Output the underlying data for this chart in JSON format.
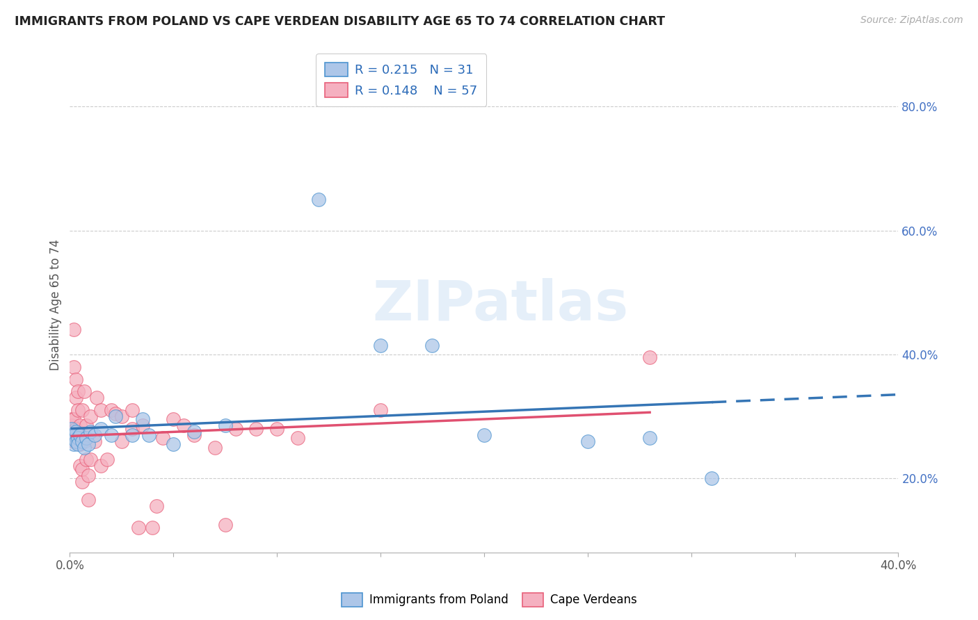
{
  "title": "IMMIGRANTS FROM POLAND VS CAPE VERDEAN DISABILITY AGE 65 TO 74 CORRELATION CHART",
  "source": "Source: ZipAtlas.com",
  "ylabel": "Disability Age 65 to 74",
  "right_yticks": [
    "20.0%",
    "40.0%",
    "60.0%",
    "80.0%"
  ],
  "right_ytick_vals": [
    0.2,
    0.4,
    0.6,
    0.8
  ],
  "R_poland": 0.215,
  "N_poland": 31,
  "R_cape": 0.148,
  "N_cape": 57,
  "color_poland_fill": "#adc6e8",
  "color_poland_edge": "#4d94d0",
  "color_cape_fill": "#f5b0c0",
  "color_cape_edge": "#e8607a",
  "color_trend_poland": "#3575b5",
  "color_trend_cape": "#e05070",
  "color_legend_text": "#2a6ab8",
  "watermark_text": "ZIPatlas",
  "xlim": [
    0.0,
    0.4
  ],
  "ylim": [
    0.08,
    0.88
  ],
  "poland_x": [
    0.001,
    0.001,
    0.002,
    0.002,
    0.003,
    0.003,
    0.004,
    0.004,
    0.005,
    0.006,
    0.007,
    0.008,
    0.009,
    0.01,
    0.012,
    0.015,
    0.02,
    0.022,
    0.03,
    0.035,
    0.038,
    0.05,
    0.06,
    0.075,
    0.12,
    0.15,
    0.175,
    0.2,
    0.25,
    0.28,
    0.31
  ],
  "poland_y": [
    0.265,
    0.28,
    0.255,
    0.27,
    0.26,
    0.275,
    0.265,
    0.255,
    0.27,
    0.26,
    0.25,
    0.265,
    0.255,
    0.275,
    0.27,
    0.28,
    0.27,
    0.3,
    0.27,
    0.295,
    0.27,
    0.255,
    0.275,
    0.285,
    0.65,
    0.415,
    0.415,
    0.27,
    0.26,
    0.265,
    0.2
  ],
  "cape_x": [
    0.001,
    0.001,
    0.001,
    0.001,
    0.001,
    0.002,
    0.002,
    0.002,
    0.002,
    0.003,
    0.003,
    0.003,
    0.003,
    0.004,
    0.004,
    0.004,
    0.005,
    0.005,
    0.005,
    0.006,
    0.006,
    0.006,
    0.007,
    0.007,
    0.008,
    0.008,
    0.009,
    0.009,
    0.01,
    0.01,
    0.012,
    0.013,
    0.015,
    0.015,
    0.018,
    0.02,
    0.022,
    0.025,
    0.025,
    0.03,
    0.03,
    0.033,
    0.035,
    0.04,
    0.042,
    0.045,
    0.05,
    0.055,
    0.06,
    0.07,
    0.075,
    0.08,
    0.09,
    0.1,
    0.11,
    0.15,
    0.28
  ],
  "cape_y": [
    0.275,
    0.285,
    0.265,
    0.295,
    0.27,
    0.44,
    0.38,
    0.295,
    0.26,
    0.36,
    0.33,
    0.28,
    0.265,
    0.34,
    0.31,
    0.27,
    0.285,
    0.255,
    0.22,
    0.195,
    0.215,
    0.31,
    0.34,
    0.26,
    0.285,
    0.23,
    0.205,
    0.165,
    0.3,
    0.23,
    0.26,
    0.33,
    0.31,
    0.22,
    0.23,
    0.31,
    0.305,
    0.3,
    0.26,
    0.31,
    0.28,
    0.12,
    0.285,
    0.12,
    0.155,
    0.265,
    0.295,
    0.285,
    0.27,
    0.25,
    0.125,
    0.28,
    0.28,
    0.28,
    0.265,
    0.31,
    0.395
  ]
}
